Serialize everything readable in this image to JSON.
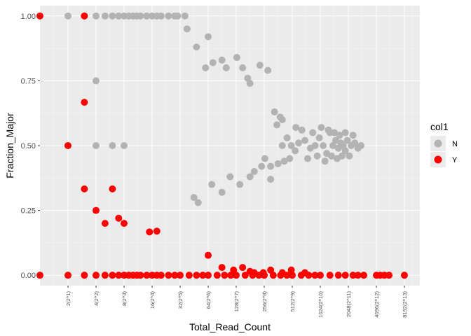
{
  "chart_data": {
    "type": "scatter",
    "title": "",
    "xlabel": "Total_Read_Count",
    "ylabel": "Fraction_Major",
    "x_scale": "log2",
    "xlim": [
      1,
      12000
    ],
    "ylim": [
      -0.04,
      1.04
    ],
    "grid": true,
    "legend_position": "right",
    "x_ticks": [
      {
        "value": 2,
        "label": "2(2^1)"
      },
      {
        "value": 4,
        "label": "4(2^2)"
      },
      {
        "value": 8,
        "label": "8(2^3)"
      },
      {
        "value": 16,
        "label": "16(2^4)"
      },
      {
        "value": 32,
        "label": "32(2^5)"
      },
      {
        "value": 64,
        "label": "64(2^6)"
      },
      {
        "value": 128,
        "label": "128(2^7)"
      },
      {
        "value": 256,
        "label": "256(2^8)"
      },
      {
        "value": 512,
        "label": "512(2^9)"
      },
      {
        "value": 1024,
        "label": "1024(2^10)"
      },
      {
        "value": 2048,
        "label": "2048(2^11)"
      },
      {
        "value": 4096,
        "label": "4096(2^12)"
      },
      {
        "value": 8192,
        "label": "8192(2^13)"
      }
    ],
    "y_ticks": [
      {
        "value": 0,
        "label": "0.00"
      },
      {
        "value": 0.25,
        "label": "0.25"
      },
      {
        "value": 0.5,
        "label": "0.50"
      },
      {
        "value": 0.75,
        "label": "0.75"
      },
      {
        "value": 1,
        "label": "1.00"
      }
    ],
    "legend": {
      "title": "col1",
      "entries": [
        {
          "label": "N",
          "color": "#b3b3b3"
        },
        {
          "label": "Y",
          "color": "#ff0000"
        }
      ]
    },
    "series": [
      {
        "name": "N",
        "color": "#b3b3b3",
        "points": [
          [
            2,
            1
          ],
          [
            3,
            1
          ],
          [
            4,
            1
          ],
          [
            5,
            1
          ],
          [
            6,
            1
          ],
          [
            7,
            1
          ],
          [
            8,
            1
          ],
          [
            9,
            1
          ],
          [
            10,
            1
          ],
          [
            11,
            1
          ],
          [
            12,
            1
          ],
          [
            14,
            1
          ],
          [
            16,
            1
          ],
          [
            18,
            1
          ],
          [
            20,
            1
          ],
          [
            24,
            1
          ],
          [
            28,
            1
          ],
          [
            30,
            1
          ],
          [
            36,
            1
          ],
          [
            2,
            0.5
          ],
          [
            4,
            0.5
          ],
          [
            4,
            0.75
          ],
          [
            6,
            0.5
          ],
          [
            8,
            0.5
          ],
          [
            3,
            0
          ],
          [
            4,
            0
          ],
          [
            5,
            0
          ],
          [
            6,
            0
          ],
          [
            8,
            0
          ],
          [
            38,
            0.95
          ],
          [
            64,
            0.92
          ],
          [
            60,
            0.8
          ],
          [
            48,
            0.88
          ],
          [
            72,
            0.82
          ],
          [
            90,
            0.83
          ],
          [
            100,
            0.8
          ],
          [
            130,
            0.84
          ],
          [
            150,
            0.8
          ],
          [
            170,
            0.76
          ],
          [
            180,
            0.74
          ],
          [
            230,
            0.81
          ],
          [
            280,
            0.79
          ],
          [
            45,
            0.3
          ],
          [
            50,
            0.28
          ],
          [
            70,
            0.35
          ],
          [
            90,
            0.32
          ],
          [
            110,
            0.38
          ],
          [
            140,
            0.35
          ],
          [
            180,
            0.38
          ],
          [
            200,
            0.4
          ],
          [
            240,
            0.42
          ],
          [
            300,
            0.37
          ],
          [
            260,
            0.45
          ],
          [
            400,
            0.5
          ],
          [
            450,
            0.53
          ],
          [
            500,
            0.5
          ],
          [
            550,
            0.48
          ],
          [
            600,
            0.51
          ],
          [
            700,
            0.52
          ],
          [
            800,
            0.49
          ],
          [
            900,
            0.5
          ],
          [
            1000,
            0.53
          ],
          [
            1100,
            0.5
          ],
          [
            1200,
            0.47
          ],
          [
            1300,
            0.55
          ],
          [
            1400,
            0.5
          ],
          [
            1500,
            0.52
          ],
          [
            1600,
            0.49
          ],
          [
            1700,
            0.51
          ],
          [
            1800,
            0.5
          ],
          [
            1900,
            0.48
          ],
          [
            2000,
            0.52
          ],
          [
            2200,
            0.5
          ],
          [
            2400,
            0.51
          ],
          [
            2600,
            0.49
          ],
          [
            2800,
            0.5
          ],
          [
            400,
            0.6
          ],
          [
            350,
            0.58
          ],
          [
            420,
            0.44
          ],
          [
            480,
            0.45
          ],
          [
            560,
            0.57
          ],
          [
            650,
            0.56
          ],
          [
            750,
            0.45
          ],
          [
            850,
            0.55
          ],
          [
            950,
            0.46
          ],
          [
            1050,
            0.57
          ],
          [
            1150,
            0.44
          ],
          [
            1250,
            0.56
          ],
          [
            1350,
            0.46
          ],
          [
            1450,
            0.55
          ],
          [
            1550,
            0.45
          ],
          [
            1650,
            0.54
          ],
          [
            1750,
            0.46
          ],
          [
            1900,
            0.55
          ],
          [
            2100,
            0.46
          ],
          [
            2300,
            0.54
          ],
          [
            330,
            0.63
          ],
          [
            380,
            0.61
          ],
          [
            300,
            0.42
          ],
          [
            360,
            0.43
          ]
        ]
      },
      {
        "name": "Y",
        "color": "#ff0000",
        "points": [
          [
            1,
            1
          ],
          [
            1,
            0
          ],
          [
            3,
            1
          ],
          [
            2,
            0.5
          ],
          [
            3,
            0.667
          ],
          [
            3,
            0.333
          ],
          [
            6,
            0.333
          ],
          [
            4,
            0.25
          ],
          [
            5,
            0.2
          ],
          [
            8,
            0.2
          ],
          [
            7,
            0.22
          ],
          [
            15,
            0.167
          ],
          [
            18,
            0.17
          ],
          [
            64,
            0.077
          ],
          [
            2,
            0
          ],
          [
            3,
            0
          ],
          [
            4,
            0
          ],
          [
            5,
            0
          ],
          [
            6,
            0
          ],
          [
            7,
            0
          ],
          [
            8,
            0
          ],
          [
            9,
            0
          ],
          [
            10,
            0
          ],
          [
            11,
            0
          ],
          [
            12,
            0
          ],
          [
            14,
            0
          ],
          [
            16,
            0
          ],
          [
            18,
            0
          ],
          [
            20,
            0
          ],
          [
            24,
            0
          ],
          [
            28,
            0
          ],
          [
            32,
            0
          ],
          [
            40,
            0
          ],
          [
            48,
            0
          ],
          [
            56,
            0
          ],
          [
            64,
            0
          ],
          [
            80,
            0
          ],
          [
            96,
            0
          ],
          [
            112,
            0
          ],
          [
            128,
            0
          ],
          [
            160,
            0
          ],
          [
            192,
            0
          ],
          [
            224,
            0
          ],
          [
            256,
            0
          ],
          [
            320,
            0
          ],
          [
            384,
            0
          ],
          [
            448,
            0
          ],
          [
            512,
            0
          ],
          [
            640,
            0
          ],
          [
            768,
            0
          ],
          [
            896,
            0
          ],
          [
            1024,
            0
          ],
          [
            1300,
            0
          ],
          [
            1600,
            0
          ],
          [
            1900,
            0
          ],
          [
            2300,
            0
          ],
          [
            2600,
            0
          ],
          [
            3000,
            0
          ],
          [
            4100,
            0
          ],
          [
            4500,
            0
          ],
          [
            5000,
            0
          ],
          [
            5600,
            0
          ],
          [
            8192,
            0
          ],
          [
            120,
            0.02
          ],
          [
            200,
            0.01
          ],
          [
            300,
            0.02
          ],
          [
            150,
            0.03
          ],
          [
            90,
            0.03
          ],
          [
            400,
            0.01
          ],
          [
            500,
            0.02
          ],
          [
            700,
            0.01
          ],
          [
            250,
            0.01
          ],
          [
            180,
            0.015
          ]
        ]
      }
    ]
  }
}
